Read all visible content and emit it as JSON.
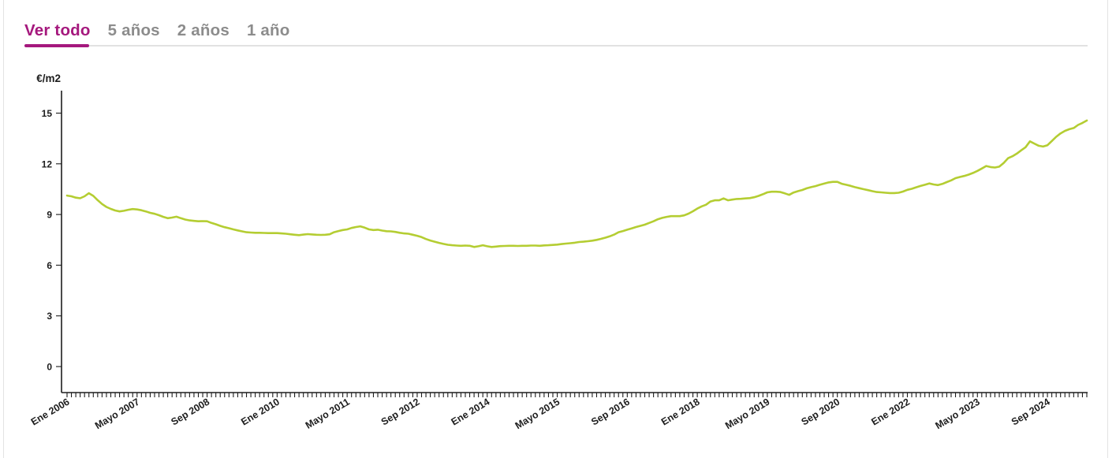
{
  "tabs": {
    "items": [
      {
        "label": "Ver todo",
        "active": true
      },
      {
        "label": "5 años",
        "active": false
      },
      {
        "label": "2 años",
        "active": false
      },
      {
        "label": "1 año",
        "active": false
      }
    ]
  },
  "colors": {
    "accent": "#a5187d",
    "line": "#b4cd32",
    "tab_inactive": "#8c8c8c",
    "axis": "#1d1d1d",
    "divider": "#e2e2e2"
  },
  "chart_data": {
    "type": "line",
    "title": "",
    "xlabel": "",
    "ylabel": "€/m2",
    "y_ticks": [
      0,
      3,
      6,
      9,
      12,
      15
    ],
    "ylim": [
      0,
      16.3
    ],
    "grid": false,
    "legend": "none",
    "x_unit": "month",
    "x_label_every_n_months": 16,
    "x_labels": [
      "Ene 2006",
      "Mayo 2007",
      "Sep 2008",
      "Ene 2010",
      "Mayo 2011",
      "Sep 2012",
      "Ene 2014",
      "Mayo 2015",
      "Sep 2016",
      "Ene 2018",
      "Mayo 2019",
      "Sep 2020",
      "Ene 2022",
      "Mayo 2023",
      "Sep 2024"
    ],
    "series": [
      {
        "name": "€/m2",
        "values": [
          10.12,
          10.08,
          10.0,
          9.96,
          10.08,
          10.26,
          10.1,
          9.85,
          9.62,
          9.45,
          9.33,
          9.24,
          9.18,
          9.22,
          9.28,
          9.32,
          9.3,
          9.25,
          9.18,
          9.1,
          9.04,
          8.96,
          8.86,
          8.78,
          8.82,
          8.87,
          8.78,
          8.7,
          8.65,
          8.62,
          8.6,
          8.61,
          8.6,
          8.5,
          8.42,
          8.33,
          8.25,
          8.19,
          8.12,
          8.06,
          8.0,
          7.95,
          7.93,
          7.92,
          7.92,
          7.91,
          7.9,
          7.9,
          7.9,
          7.88,
          7.86,
          7.83,
          7.8,
          7.78,
          7.81,
          7.84,
          7.82,
          7.8,
          7.79,
          7.8,
          7.83,
          7.95,
          8.02,
          8.08,
          8.12,
          8.2,
          8.26,
          8.3,
          8.22,
          8.12,
          8.08,
          8.1,
          8.05,
          8.01,
          8.0,
          7.97,
          7.92,
          7.88,
          7.86,
          7.8,
          7.74,
          7.66,
          7.55,
          7.46,
          7.39,
          7.32,
          7.26,
          7.21,
          7.18,
          7.16,
          7.15,
          7.16,
          7.15,
          7.08,
          7.12,
          7.18,
          7.12,
          7.08,
          7.1,
          7.13,
          7.14,
          7.15,
          7.15,
          7.14,
          7.15,
          7.15,
          7.16,
          7.16,
          7.15,
          7.17,
          7.18,
          7.2,
          7.22,
          7.25,
          7.28,
          7.3,
          7.33,
          7.37,
          7.39,
          7.42,
          7.45,
          7.5,
          7.56,
          7.63,
          7.71,
          7.81,
          7.95,
          8.02,
          8.1,
          8.18,
          8.26,
          8.33,
          8.4,
          8.5,
          8.6,
          8.72,
          8.8,
          8.86,
          8.9,
          8.9,
          8.9,
          8.95,
          9.05,
          9.19,
          9.35,
          9.48,
          9.58,
          9.77,
          9.84,
          9.84,
          9.95,
          9.84,
          9.88,
          9.92,
          9.93,
          9.95,
          9.97,
          10.02,
          10.1,
          10.2,
          10.31,
          10.35,
          10.35,
          10.33,
          10.25,
          10.16,
          10.3,
          10.38,
          10.45,
          10.55,
          10.62,
          10.68,
          10.76,
          10.83,
          10.9,
          10.93,
          10.93,
          10.82,
          10.76,
          10.7,
          10.62,
          10.56,
          10.5,
          10.44,
          10.38,
          10.33,
          10.31,
          10.29,
          10.27,
          10.27,
          10.29,
          10.36,
          10.46,
          10.52,
          10.61,
          10.69,
          10.76,
          10.84,
          10.78,
          10.74,
          10.81,
          10.92,
          11.02,
          11.15,
          11.22,
          11.28,
          11.36,
          11.46,
          11.58,
          11.72,
          11.87,
          11.81,
          11.78,
          11.83,
          12.05,
          12.33,
          12.45,
          12.6,
          12.8,
          12.98,
          13.33,
          13.2,
          13.07,
          13.02,
          13.1,
          13.35,
          13.6,
          13.8,
          13.95,
          14.05,
          14.12,
          14.3,
          14.42,
          14.56
        ]
      }
    ]
  }
}
